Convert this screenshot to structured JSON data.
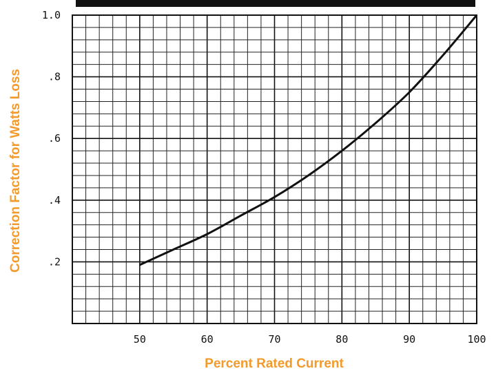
{
  "chart_data": {
    "type": "line",
    "title": "",
    "xlabel": "Percent Rated Current",
    "ylabel": "Correction Factor for Watts Loss",
    "xlim": [
      40,
      100
    ],
    "ylim": [
      0,
      1.0
    ],
    "x_ticks": [
      50,
      60,
      70,
      80,
      90,
      100
    ],
    "x_tick_labels": [
      "50",
      "60",
      "70",
      "80",
      "90",
      "100"
    ],
    "y_ticks": [
      0.2,
      0.4,
      0.6,
      0.8,
      1.0
    ],
    "y_tick_labels": [
      ".2",
      ".4",
      ".6",
      ".8",
      "1.0"
    ],
    "grid": true,
    "grid_minor_x_step": 2,
    "grid_minor_y_step": 0.04,
    "series": [
      {
        "color": "#111111",
        "x": [
          50,
          55,
          60,
          65,
          70,
          75,
          80,
          85,
          90,
          95,
          100
        ],
        "y": [
          0.19,
          0.24,
          0.29,
          0.35,
          0.41,
          0.48,
          0.56,
          0.65,
          0.75,
          0.87,
          1.0
        ]
      }
    ],
    "colors": {
      "axis_title": "#f39a2c",
      "line": "#111111",
      "top_bar": "#111111"
    }
  }
}
